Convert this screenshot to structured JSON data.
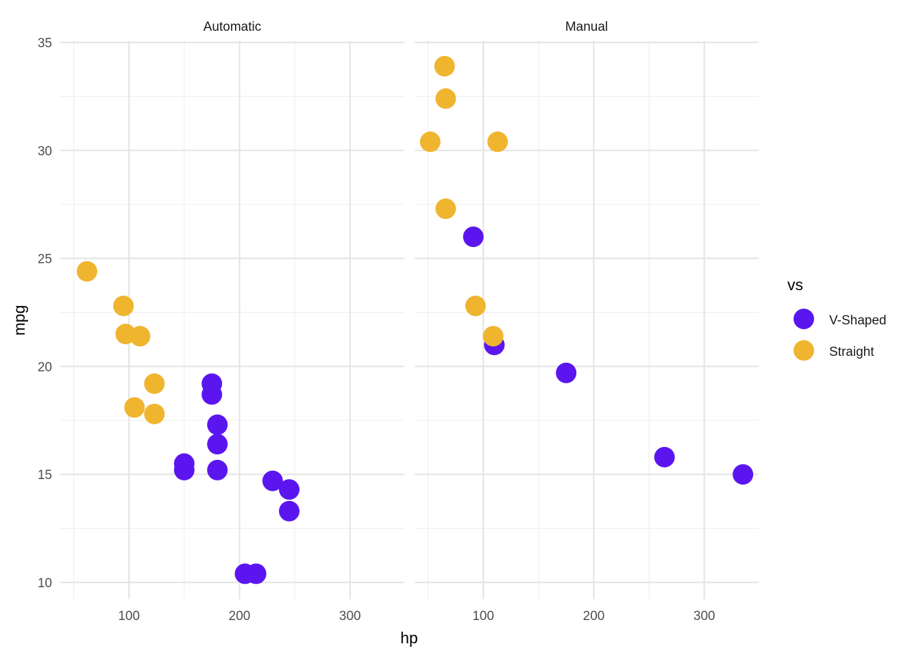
{
  "chart_data": {
    "type": "scatter",
    "xlabel": "hp",
    "ylabel": "mpg",
    "xlim": [
      37.85,
      349.15
    ],
    "ylim": [
      9.225,
      35.075
    ],
    "x_ticks": [
      100,
      200,
      300
    ],
    "y_ticks": [
      10,
      15,
      20,
      25,
      30,
      35
    ],
    "grid": true,
    "legend": {
      "title": "vs",
      "placement": "right",
      "entries": [
        "V-Shaped",
        "Straight"
      ]
    },
    "colors": {
      "V-Shaped": "#5b16f0",
      "Straight": "#f0b52f"
    },
    "facets": [
      {
        "label": "Automatic",
        "points": [
          {
            "hp": 110,
            "mpg": 21.4,
            "vs": "Straight"
          },
          {
            "hp": 175,
            "mpg": 18.7,
            "vs": "V-Shaped"
          },
          {
            "hp": 105,
            "mpg": 18.1,
            "vs": "Straight"
          },
          {
            "hp": 245,
            "mpg": 14.3,
            "vs": "V-Shaped"
          },
          {
            "hp": 62,
            "mpg": 24.4,
            "vs": "Straight"
          },
          {
            "hp": 95,
            "mpg": 22.8,
            "vs": "Straight"
          },
          {
            "hp": 123,
            "mpg": 19.2,
            "vs": "Straight"
          },
          {
            "hp": 123,
            "mpg": 17.8,
            "vs": "Straight"
          },
          {
            "hp": 180,
            "mpg": 16.4,
            "vs": "V-Shaped"
          },
          {
            "hp": 180,
            "mpg": 17.3,
            "vs": "V-Shaped"
          },
          {
            "hp": 180,
            "mpg": 15.2,
            "vs": "V-Shaped"
          },
          {
            "hp": 205,
            "mpg": 10.4,
            "vs": "V-Shaped"
          },
          {
            "hp": 215,
            "mpg": 10.4,
            "vs": "V-Shaped"
          },
          {
            "hp": 230,
            "mpg": 14.7,
            "vs": "V-Shaped"
          },
          {
            "hp": 97,
            "mpg": 21.5,
            "vs": "Straight"
          },
          {
            "hp": 150,
            "mpg": 15.5,
            "vs": "V-Shaped"
          },
          {
            "hp": 150,
            "mpg": 15.2,
            "vs": "V-Shaped"
          },
          {
            "hp": 245,
            "mpg": 13.3,
            "vs": "V-Shaped"
          },
          {
            "hp": 175,
            "mpg": 19.2,
            "vs": "V-Shaped"
          }
        ]
      },
      {
        "label": "Manual",
        "points": [
          {
            "hp": 110,
            "mpg": 21.0,
            "vs": "V-Shaped"
          },
          {
            "hp": 110,
            "mpg": 21.0,
            "vs": "V-Shaped"
          },
          {
            "hp": 93,
            "mpg": 22.8,
            "vs": "Straight"
          },
          {
            "hp": 66,
            "mpg": 32.4,
            "vs": "Straight"
          },
          {
            "hp": 52,
            "mpg": 30.4,
            "vs": "Straight"
          },
          {
            "hp": 65,
            "mpg": 33.9,
            "vs": "Straight"
          },
          {
            "hp": 66,
            "mpg": 27.3,
            "vs": "Straight"
          },
          {
            "hp": 91,
            "mpg": 26.0,
            "vs": "V-Shaped"
          },
          {
            "hp": 113,
            "mpg": 30.4,
            "vs": "Straight"
          },
          {
            "hp": 264,
            "mpg": 15.8,
            "vs": "V-Shaped"
          },
          {
            "hp": 175,
            "mpg": 19.7,
            "vs": "V-Shaped"
          },
          {
            "hp": 335,
            "mpg": 15.0,
            "vs": "V-Shaped"
          },
          {
            "hp": 109,
            "mpg": 21.4,
            "vs": "Straight"
          }
        ]
      }
    ]
  }
}
